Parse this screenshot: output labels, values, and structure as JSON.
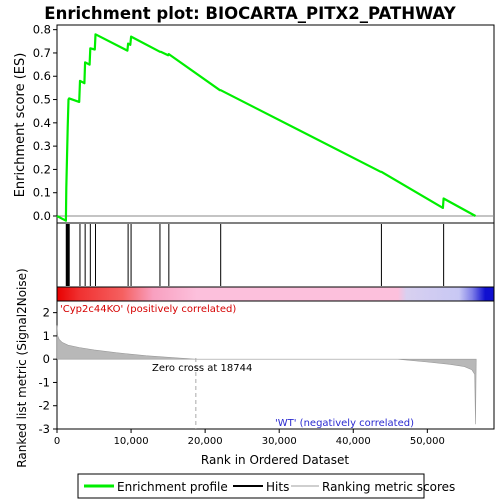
{
  "title": "Enrichment plot: BIOCARTA_PITX2_PATHWAY",
  "colors": {
    "profile": "#00ee00",
    "hits": "#000000",
    "metric_fill": "#b8b8b8",
    "positive_label": "#d50000",
    "negative_label": "#2a2ad0"
  },
  "chart_data": [
    {
      "type": "line",
      "name": "enrichment-profile",
      "ylabel": "Enrichment score (ES)",
      "ylim": [
        -0.03,
        0.82
      ],
      "yticks": [
        "0.0",
        "0.1",
        "0.2",
        "0.3",
        "0.4",
        "0.5",
        "0.6",
        "0.7",
        "0.8"
      ],
      "ytick_values": [
        0.0,
        0.1,
        0.2,
        0.3,
        0.4,
        0.5,
        0.6,
        0.7,
        0.8
      ],
      "xlim": [
        0,
        59000
      ],
      "x": [
        0,
        1200,
        1250,
        1350,
        1450,
        1550,
        1650,
        3000,
        3100,
        3700,
        3800,
        4400,
        4500,
        5100,
        5200,
        9500,
        9600,
        9900,
        10000,
        13900,
        14000,
        15000,
        15100,
        22000,
        22100,
        43700,
        43800,
        52100,
        52200,
        56500
      ],
      "y": [
        0.0,
        -0.02,
        0.12,
        0.25,
        0.38,
        0.5,
        0.505,
        0.49,
        0.58,
        0.57,
        0.66,
        0.65,
        0.72,
        0.715,
        0.78,
        0.71,
        0.74,
        0.735,
        0.77,
        0.705,
        0.705,
        0.69,
        0.695,
        0.54,
        0.54,
        0.19,
        0.19,
        0.035,
        0.075,
        0.0
      ],
      "grid": false
    },
    {
      "type": "scatter",
      "name": "hits",
      "x": [
        1250,
        1350,
        1450,
        1550,
        1650,
        3100,
        3800,
        4500,
        5200,
        9600,
        10000,
        13900,
        15100,
        22100,
        43800,
        52200
      ]
    },
    {
      "type": "area",
      "name": "ranked-list-metric",
      "ylabel": "Ranked list metric (Signal2Noise)",
      "xlabel": "Rank in Ordered Dataset",
      "ylim": [
        -3,
        2.5
      ],
      "yticks": [
        "-3",
        "-2",
        "-1",
        "0",
        "1",
        "2"
      ],
      "ytick_values": [
        -3,
        -2,
        -1,
        0,
        1,
        2
      ],
      "xticks": [
        "0",
        "10,000",
        "20,000",
        "30,000",
        "40,000",
        "50,000"
      ],
      "xtick_values": [
        0,
        10000,
        20000,
        30000,
        40000,
        50000
      ],
      "xlim": [
        0,
        59000
      ],
      "x": [
        0,
        100,
        300,
        700,
        1500,
        3000,
        5000,
        8000,
        12000,
        16000,
        18744,
        46000,
        50000,
        53000,
        55000,
        56000,
        56400,
        56500,
        56600
      ],
      "y": [
        1.45,
        1.0,
        0.85,
        0.72,
        0.6,
        0.5,
        0.4,
        0.28,
        0.15,
        0.06,
        0.0,
        0.0,
        -0.12,
        -0.22,
        -0.32,
        -0.45,
        -0.65,
        -2.8,
        0.0
      ],
      "zero_cross": 18744,
      "zero_cross_label": "Zero cross at 18744",
      "positive_label": "'Cyp2c44KO' (positively correlated)",
      "negative_label": "'WT' (negatively correlated)"
    }
  ],
  "legend": {
    "items": [
      {
        "label": "Enrichment profile",
        "color": "#00ee00"
      },
      {
        "label": "Hits",
        "color": "#000000"
      },
      {
        "label": "Ranking metric scores",
        "color": "#cfcfcf"
      }
    ]
  }
}
